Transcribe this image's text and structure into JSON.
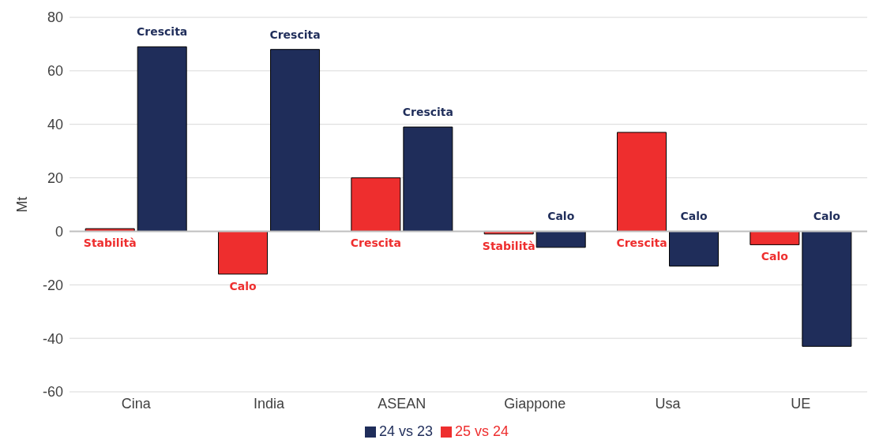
{
  "chart_data": {
    "type": "bar",
    "ylabel": "Mt",
    "categories": [
      "Cina",
      "India",
      "ASEAN",
      "Giappone",
      "Usa",
      "UE"
    ],
    "series": [
      {
        "name": "25 vs 24",
        "color": "#ee2e2e",
        "values": [
          1,
          -16,
          20,
          -1,
          37,
          -5
        ],
        "value_labels": [
          "Stabilità",
          "Calo",
          "Crescita",
          "Stabilità",
          "Crescita",
          "Calo"
        ]
      },
      {
        "name": "24 vs 23",
        "color": "#1f2d5a",
        "values": [
          69,
          68,
          39,
          -6,
          -13,
          -43
        ],
        "value_labels": [
          "Crescita",
          "Crescita",
          "Crescita",
          "Calo",
          "Calo",
          "Calo"
        ]
      }
    ],
    "ylim": [
      -60,
      80
    ],
    "yticks": [
      -60,
      -40,
      -20,
      0,
      20,
      40,
      60,
      80
    ],
    "grid": "y",
    "legend": "bottom"
  }
}
